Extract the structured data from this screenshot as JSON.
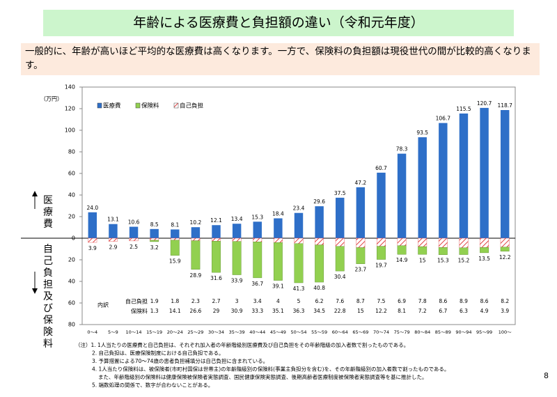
{
  "header": {
    "title": "年齢による医療費と負担額の違い（令和元年度）",
    "intro": "一般的に、年齢が高いほど平均的な医療費は高くなります。一方で、保険料の負担額は現役世代の間が比較的高くなります。",
    "page": "8"
  },
  "chart_data": {
    "type": "bar",
    "unit": "（万円）",
    "upper_label": "医療費",
    "lower_label": "自己負担及び保険料",
    "breakdown_label": "内訳",
    "categories": [
      "0～4",
      "5～9",
      "10～14",
      "15～19",
      "20～24",
      "25～29",
      "30～34",
      "35～39",
      "40～44",
      "45～49",
      "50～54",
      "55～59",
      "60～64",
      "65～69",
      "70～74",
      "75～79",
      "80～84",
      "85～89",
      "90～94",
      "95～99",
      "100～"
    ],
    "series": [
      {
        "name": "医療費",
        "color": "#2e6fc8",
        "values": [
          24.0,
          13.1,
          10.6,
          8.5,
          8.1,
          10.2,
          12.1,
          13.4,
          15.3,
          18.4,
          23.4,
          29.6,
          37.5,
          47.2,
          60.7,
          78.3,
          93.5,
          106.7,
          115.5,
          120.7,
          118.7
        ],
        "value_labels": [
          "24.0",
          "13.1",
          "10.6",
          "8.5",
          "8.1",
          "10.2",
          "12.1",
          "13.4",
          "15.3",
          "18.4",
          "23.4",
          "29.6",
          "37.5",
          "47.2",
          "60.7",
          "78.3",
          "93.5",
          "106.7",
          "115.5",
          "120.7",
          "118.7"
        ]
      },
      {
        "name": "保険料",
        "color": "#92d050",
        "values": [
          null,
          null,
          null,
          1.3,
          14.1,
          26.6,
          29.0,
          30.9,
          33.3,
          35.1,
          36.3,
          34.5,
          22.8,
          15.0,
          12.2,
          8.1,
          7.2,
          6.7,
          6.3,
          4.9,
          3.9
        ]
      },
      {
        "name": "自己負担",
        "color": "#e04040",
        "values": [
          null,
          null,
          null,
          1.9,
          1.8,
          2.3,
          2.7,
          3.0,
          3.4,
          4.0,
          5.0,
          6.2,
          7.6,
          8.7,
          7.5,
          6.9,
          7.8,
          8.6,
          8.9,
          8.6,
          8.2
        ]
      }
    ],
    "totals": [
      3.9,
      2.9,
      2.5,
      3.2,
      15.9,
      28.9,
      31.6,
      33.9,
      36.7,
      39.1,
      41.3,
      40.8,
      30.4,
      23.7,
      19.7,
      14.9,
      15.0,
      15.3,
      15.2,
      13.5,
      12.2
    ],
    "ylim": [
      -80,
      140
    ],
    "yticks": [
      {
        "value": -80,
        "label": "80"
      },
      {
        "value": -60,
        "label": "60"
      },
      {
        "value": -40,
        "label": "40"
      },
      {
        "value": -20,
        "label": "20"
      },
      0,
      20,
      40,
      60,
      80,
      100,
      120,
      140
    ]
  },
  "notes": [
    "（注）1. 1人当たりの医療費と自己負担は、それぞれ加入者の年齢階級別医療費及び自己負担をその年齢階級の加入者数で割ったものである。",
    "2. 自己負担は、医療保険制度における自己負担である。",
    "3. 予算措置による70～74歳の患者負担補填分は自己負担に含まれている。",
    "4. 1人当たり保険料は、被保険者(市町村国保は世帯主)の年齢階級別の保険料(事業主負担分を含む)を、その年齢階級別の加入者数で割ったものである。",
    "また、年齢階級別の保険料は健康保険被保険者実態調査、国民健康保険実態調査、後期高齢者医療制度被保険者実態調査等を基に推計した。",
    "5. 端数処理の関係で、数字が合わないことがある。"
  ]
}
